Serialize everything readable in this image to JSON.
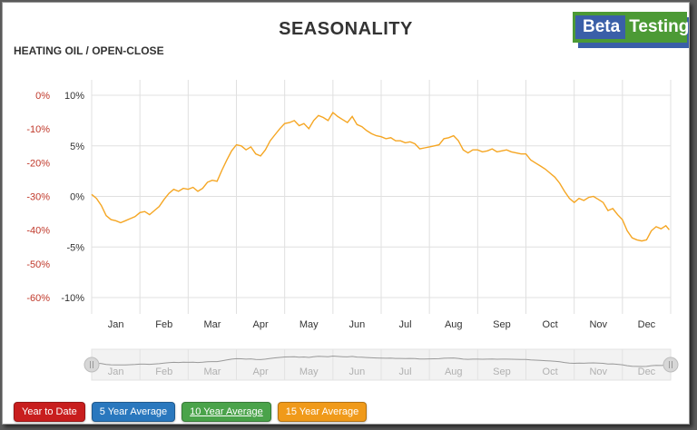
{
  "header": {
    "title": "SEASONALITY",
    "subtitle": "HEATING OIL / OPEN-CLOSE"
  },
  "logo": {
    "part1": "Beta",
    "part2": "Testing"
  },
  "buttons": {
    "ytd": "Year to Date",
    "y5": "5 Year Average",
    "y10": "10 Year Average",
    "y15": "15 Year Average"
  },
  "colors": {
    "series": "#f5a623",
    "left_axis": "#c0392b",
    "grid": "#e0e0e0",
    "navigator": "#999999"
  },
  "chart_data": {
    "type": "line",
    "title": "SEASONALITY",
    "subtitle": "HEATING OIL / OPEN-CLOSE",
    "x_categories": [
      "Jan",
      "Feb",
      "Mar",
      "Apr",
      "May",
      "Jun",
      "Jul",
      "Aug",
      "Sep",
      "Oct",
      "Nov",
      "Dec"
    ],
    "x_range": [
      0,
      12
    ],
    "left_axis": {
      "ticks": [
        "0%",
        "-10%",
        "-20%",
        "-30%",
        "-40%",
        "-50%",
        "-60%"
      ],
      "range": [
        -60,
        0
      ]
    },
    "right_axis": {
      "ticks": [
        "10%",
        "5%",
        "0%",
        "-5%",
        "-10%"
      ],
      "range": [
        -10,
        10
      ]
    },
    "grid": true,
    "series": [
      {
        "axis": "right",
        "color": "#f5a623",
        "points": [
          [
            0.0,
            0.2
          ],
          [
            0.1,
            -0.2
          ],
          [
            0.2,
            -0.9
          ],
          [
            0.3,
            -1.9
          ],
          [
            0.4,
            -2.3
          ],
          [
            0.5,
            -2.4
          ],
          [
            0.6,
            -2.6
          ],
          [
            0.7,
            -2.4
          ],
          [
            0.8,
            -2.2
          ],
          [
            0.9,
            -2.0
          ],
          [
            1.0,
            -1.6
          ],
          [
            1.1,
            -1.5
          ],
          [
            1.2,
            -1.8
          ],
          [
            1.3,
            -1.4
          ],
          [
            1.4,
            -1.0
          ],
          [
            1.5,
            -0.3
          ],
          [
            1.6,
            0.3
          ],
          [
            1.7,
            0.7
          ],
          [
            1.8,
            0.5
          ],
          [
            1.9,
            0.8
          ],
          [
            2.0,
            0.7
          ],
          [
            2.1,
            0.9
          ],
          [
            2.2,
            0.5
          ],
          [
            2.3,
            0.8
          ],
          [
            2.4,
            1.4
          ],
          [
            2.5,
            1.6
          ],
          [
            2.6,
            1.5
          ],
          [
            2.7,
            2.6
          ],
          [
            2.8,
            3.6
          ],
          [
            2.9,
            4.5
          ],
          [
            3.0,
            5.1
          ],
          [
            3.1,
            5.0
          ],
          [
            3.2,
            4.6
          ],
          [
            3.3,
            4.9
          ],
          [
            3.4,
            4.2
          ],
          [
            3.5,
            4.0
          ],
          [
            3.6,
            4.6
          ],
          [
            3.7,
            5.5
          ],
          [
            3.8,
            6.1
          ],
          [
            3.9,
            6.7
          ],
          [
            4.0,
            7.2
          ],
          [
            4.1,
            7.3
          ],
          [
            4.2,
            7.5
          ],
          [
            4.3,
            7.0
          ],
          [
            4.4,
            7.2
          ],
          [
            4.5,
            6.7
          ],
          [
            4.6,
            7.5
          ],
          [
            4.7,
            8.0
          ],
          [
            4.8,
            7.8
          ],
          [
            4.9,
            7.5
          ],
          [
            5.0,
            8.3
          ],
          [
            5.1,
            7.9
          ],
          [
            5.2,
            7.6
          ],
          [
            5.3,
            7.3
          ],
          [
            5.4,
            7.9
          ],
          [
            5.5,
            7.1
          ],
          [
            5.6,
            6.9
          ],
          [
            5.7,
            6.5
          ],
          [
            5.8,
            6.2
          ],
          [
            5.9,
            6.0
          ],
          [
            6.0,
            5.9
          ],
          [
            6.1,
            5.7
          ],
          [
            6.2,
            5.8
          ],
          [
            6.3,
            5.5
          ],
          [
            6.4,
            5.5
          ],
          [
            6.5,
            5.3
          ],
          [
            6.6,
            5.4
          ],
          [
            6.7,
            5.2
          ],
          [
            6.8,
            4.7
          ],
          [
            6.9,
            4.8
          ],
          [
            7.0,
            4.9
          ],
          [
            7.1,
            5.0
          ],
          [
            7.2,
            5.1
          ],
          [
            7.3,
            5.7
          ],
          [
            7.4,
            5.8
          ],
          [
            7.5,
            6.0
          ],
          [
            7.6,
            5.5
          ],
          [
            7.7,
            4.6
          ],
          [
            7.8,
            4.3
          ],
          [
            7.9,
            4.6
          ],
          [
            8.0,
            4.6
          ],
          [
            8.1,
            4.4
          ],
          [
            8.2,
            4.5
          ],
          [
            8.3,
            4.7
          ],
          [
            8.4,
            4.4
          ],
          [
            8.5,
            4.5
          ],
          [
            8.6,
            4.6
          ],
          [
            8.7,
            4.4
          ],
          [
            8.8,
            4.3
          ],
          [
            8.9,
            4.2
          ],
          [
            9.0,
            4.2
          ],
          [
            9.1,
            3.6
          ],
          [
            9.2,
            3.3
          ],
          [
            9.3,
            3.0
          ],
          [
            9.4,
            2.7
          ],
          [
            9.5,
            2.3
          ],
          [
            9.6,
            1.9
          ],
          [
            9.7,
            1.3
          ],
          [
            9.8,
            0.5
          ],
          [
            9.9,
            -0.2
          ],
          [
            10.0,
            -0.6
          ],
          [
            10.1,
            -0.2
          ],
          [
            10.2,
            -0.4
          ],
          [
            10.3,
            -0.1
          ],
          [
            10.4,
            0.0
          ],
          [
            10.5,
            -0.3
          ],
          [
            10.6,
            -0.6
          ],
          [
            10.7,
            -1.4
          ],
          [
            10.8,
            -1.2
          ],
          [
            10.9,
            -1.8
          ],
          [
            11.0,
            -2.3
          ],
          [
            11.1,
            -3.4
          ],
          [
            11.2,
            -4.1
          ],
          [
            11.3,
            -4.3
          ],
          [
            11.4,
            -4.4
          ],
          [
            11.5,
            -4.3
          ],
          [
            11.6,
            -3.4
          ],
          [
            11.7,
            -3.0
          ],
          [
            11.8,
            -3.2
          ],
          [
            11.9,
            -2.9
          ],
          [
            11.97,
            -3.3
          ]
        ]
      }
    ]
  }
}
